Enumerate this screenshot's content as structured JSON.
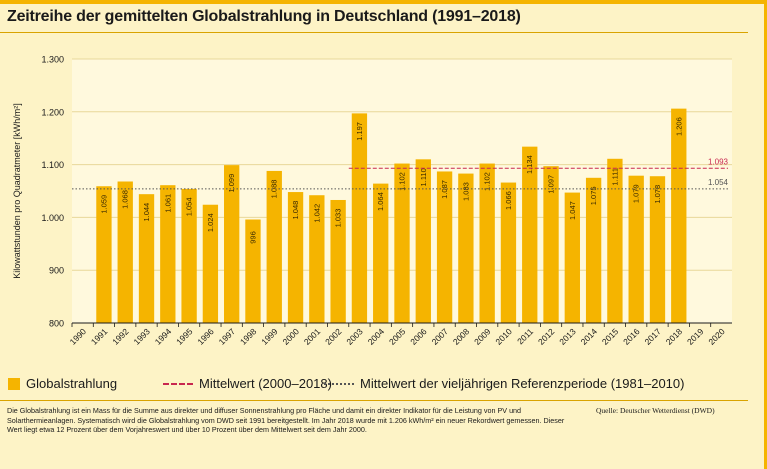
{
  "title": "Zeitreihe der gemittelten Globalstrahlung in Deutschland (1991–2018)",
  "legend": {
    "bars": "Globalstrahlung",
    "mean": "Mittelwert (2000–2018)",
    "reference": "Mittelwert der vieljährigen Referenzperiode (1981–2010)"
  },
  "footnote": "Die Globalstrahlung ist ein Mass für die Summe aus direkter und diffuser Sonnenstrahlung pro Fläche und damit ein direkter Indikator für die Leistung von PV und Solarthermieanlagen. Systematisch wird die Globalstrahlung vom DWD seit 1991 bereitgestellt. Im Jahr 2018 wurde mit 1.206 kWh/m² ein neuer Rekordwert gemessen. Dieser Wert liegt etwa 12 Prozent über dem Vorjahreswert und über 10 Prozent über dem Mittelwert seit dem Jahr 2000.",
  "source": "Quelle: Deutscher Wetterdienst (DWD)",
  "colors": {
    "bar": "#f5b400",
    "mean_line": "#c8274f",
    "reference_line": "#555555",
    "plot_bg": "#fff9dd",
    "grid": "#e8d89a"
  },
  "chart_data": {
    "type": "bar",
    "categories": [
      "1990",
      "1991",
      "1992",
      "1993",
      "1994",
      "1995",
      "1996",
      "1997",
      "1998",
      "1999",
      "2000",
      "2001",
      "2002",
      "2003",
      "2004",
      "2005",
      "2006",
      "2007",
      "2008",
      "2009",
      "2010",
      "2011",
      "2012",
      "2013",
      "2014",
      "2015",
      "2016",
      "2017",
      "2018",
      "2019",
      "2020"
    ],
    "series": [
      {
        "name": "Globalstrahlung",
        "values": [
          null,
          1059,
          1068,
          1044,
          1061,
          1054,
          1024,
          1099,
          996,
          1088,
          1048,
          1042,
          1033,
          1197,
          1064,
          1102,
          1110,
          1087,
          1083,
          1102,
          1066,
          1134,
          1097,
          1047,
          1075,
          1111,
          1079,
          1078,
          1206,
          null,
          null
        ],
        "labels": [
          null,
          "1.059",
          "1.068",
          "1.044",
          "1.061",
          "1.054",
          "1.024",
          "1.099",
          "996",
          "1.088",
          "1.048",
          "1.042",
          "1.033",
          "1.197",
          "1.064",
          "1.102",
          "1.110",
          "1.087",
          "1.083",
          "1.102",
          "1.066",
          "1.134",
          "1.097",
          "1.047",
          "1.075",
          "1.111",
          "1.079",
          "1.078",
          "1.206",
          null,
          null
        ]
      }
    ],
    "reference_lines": [
      {
        "name": "Mittelwert (2000–2018)",
        "value": 1093,
        "label": "1.093",
        "style": "dashed",
        "from": "2003"
      },
      {
        "name": "Mittelwert der vieljährigen Referenzperiode (1981–2010)",
        "value": 1054,
        "label": "1.054",
        "style": "dotted",
        "from": "1990"
      }
    ],
    "ylabel": "Kilowattstunden pro Quadratmeter [kWh/m²]",
    "yticks": [
      800,
      900,
      1000,
      1100,
      1200,
      1300
    ],
    "ytick_labels": [
      "800",
      "900",
      "1.000",
      "1.100",
      "1.200",
      "1.300"
    ],
    "ylim": [
      800,
      1300
    ],
    "grid": true,
    "legend_position": "bottom"
  }
}
